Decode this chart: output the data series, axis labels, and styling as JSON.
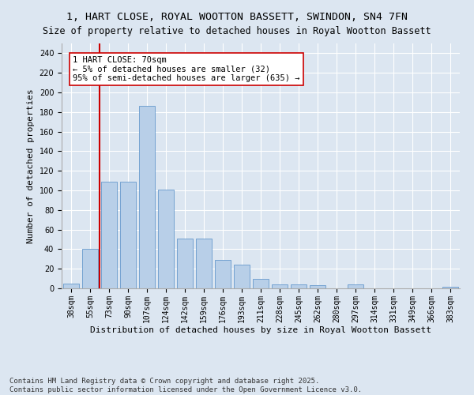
{
  "title": "1, HART CLOSE, ROYAL WOOTTON BASSETT, SWINDON, SN4 7FN",
  "subtitle": "Size of property relative to detached houses in Royal Wootton Bassett",
  "xlabel": "Distribution of detached houses by size in Royal Wootton Bassett",
  "ylabel": "Number of detached properties",
  "categories": [
    "38sqm",
    "55sqm",
    "73sqm",
    "90sqm",
    "107sqm",
    "124sqm",
    "142sqm",
    "159sqm",
    "176sqm",
    "193sqm",
    "211sqm",
    "228sqm",
    "245sqm",
    "262sqm",
    "280sqm",
    "297sqm",
    "314sqm",
    "331sqm",
    "349sqm",
    "366sqm",
    "383sqm"
  ],
  "values": [
    5,
    40,
    109,
    109,
    186,
    101,
    51,
    51,
    29,
    24,
    10,
    4,
    4,
    3,
    0,
    4,
    0,
    0,
    0,
    0,
    2
  ],
  "bar_color": "#b8cfe8",
  "bar_edge_color": "#6699cc",
  "vline_index": 1.5,
  "vline_color": "#cc0000",
  "annotation_text": "1 HART CLOSE: 70sqm\n← 5% of detached houses are smaller (32)\n95% of semi-detached houses are larger (635) →",
  "annotation_box_color": "#ffffff",
  "annotation_box_edge": "#cc0000",
  "ylim": [
    0,
    250
  ],
  "yticks": [
    0,
    20,
    40,
    60,
    80,
    100,
    120,
    140,
    160,
    180,
    200,
    220,
    240
  ],
  "background_color": "#dce6f1",
  "plot_bg_color": "#dce6f1",
  "footer": "Contains HM Land Registry data © Crown copyright and database right 2025.\nContains public sector information licensed under the Open Government Licence v3.0.",
  "title_fontsize": 9.5,
  "subtitle_fontsize": 8.5,
  "xlabel_fontsize": 8,
  "ylabel_fontsize": 8,
  "tick_fontsize": 7,
  "annotation_fontsize": 7.5,
  "footer_fontsize": 6.5
}
